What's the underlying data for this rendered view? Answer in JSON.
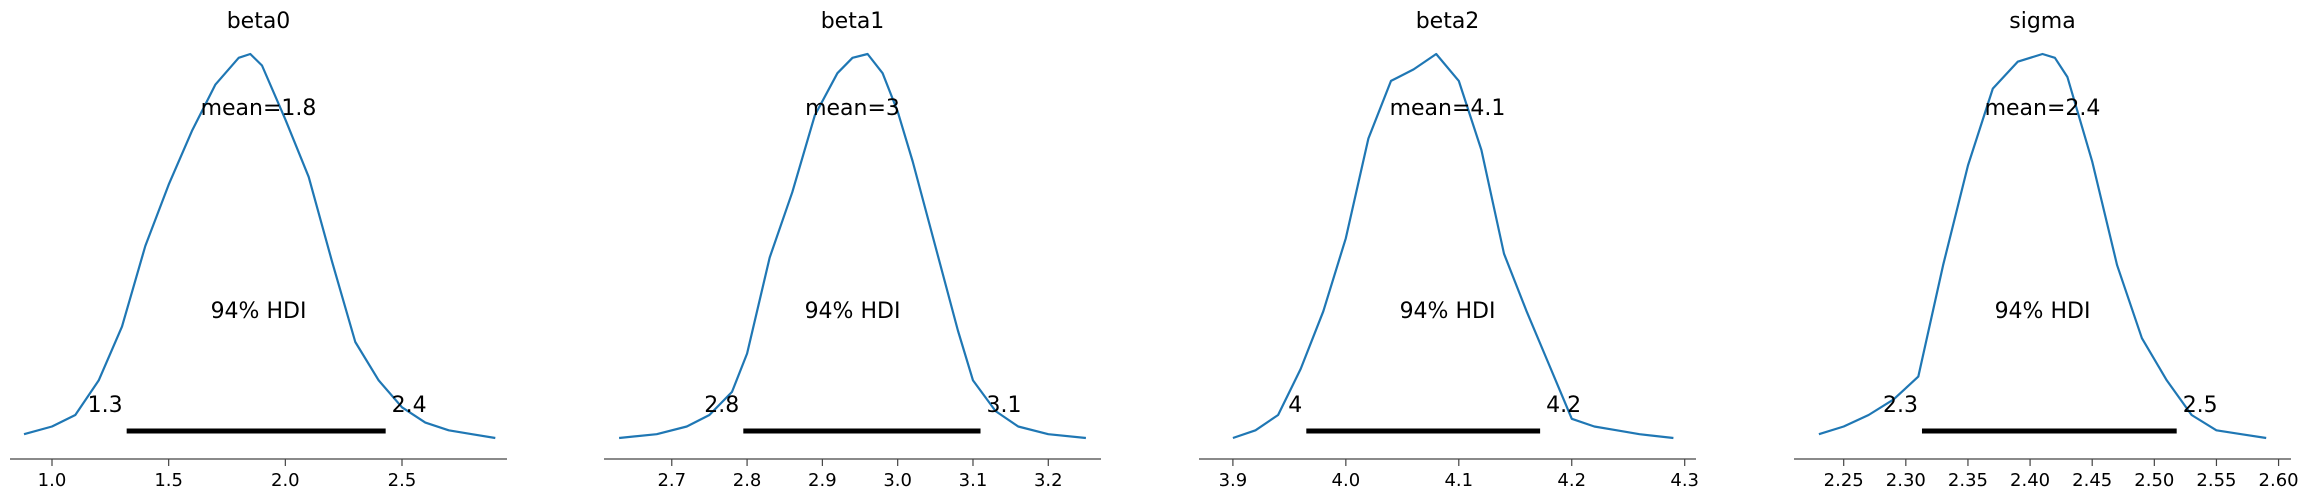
{
  "chart_data": [
    {
      "type": "density",
      "title": "beta0",
      "mean_label": "mean=1.8",
      "hdi_label": "94% HDI",
      "hdi": [
        1.32,
        2.43
      ],
      "hdi_low_label": "1.3",
      "hdi_high_label": "2.4",
      "xlim": [
        0.82,
        2.95
      ],
      "xticks": [
        1.0,
        1.5,
        2.0,
        2.5
      ],
      "xtick_labels": [
        "1.0",
        "1.5",
        "2.0",
        "2.5"
      ],
      "x": [
        0.88,
        1.0,
        1.1,
        1.2,
        1.3,
        1.4,
        1.5,
        1.6,
        1.7,
        1.8,
        1.85,
        1.9,
        2.0,
        2.1,
        2.2,
        2.3,
        2.4,
        2.5,
        2.6,
        2.7,
        2.8,
        2.9
      ],
      "y": [
        0.01,
        0.03,
        0.06,
        0.15,
        0.29,
        0.5,
        0.66,
        0.8,
        0.92,
        0.99,
        1.0,
        0.97,
        0.83,
        0.68,
        0.46,
        0.25,
        0.15,
        0.08,
        0.04,
        0.02,
        0.01,
        0.0
      ]
    },
    {
      "type": "density",
      "title": "beta1",
      "mean_label": "mean=3",
      "hdi_label": "94% HDI",
      "hdi": [
        2.795,
        3.11
      ],
      "hdi_low_label": "2.8",
      "hdi_high_label": "3.1",
      "xlim": [
        2.61,
        3.27
      ],
      "xticks": [
        2.7,
        2.8,
        2.9,
        3.0,
        3.1,
        3.2
      ],
      "xtick_labels": [
        "2.7",
        "2.8",
        "2.9",
        "3.0",
        "3.1",
        "3.2"
      ],
      "x": [
        2.63,
        2.68,
        2.72,
        2.75,
        2.78,
        2.8,
        2.83,
        2.86,
        2.89,
        2.92,
        2.94,
        2.96,
        2.98,
        3.0,
        3.02,
        3.05,
        3.08,
        3.1,
        3.13,
        3.16,
        3.2,
        3.25
      ],
      "y": [
        0.0,
        0.01,
        0.03,
        0.06,
        0.12,
        0.22,
        0.47,
        0.64,
        0.84,
        0.95,
        0.99,
        1.0,
        0.95,
        0.85,
        0.72,
        0.5,
        0.28,
        0.15,
        0.07,
        0.03,
        0.01,
        0.0
      ]
    },
    {
      "type": "density",
      "title": "beta2",
      "mean_label": "mean=4.1",
      "hdi_label": "94% HDI",
      "hdi": [
        3.965,
        4.172
      ],
      "hdi_low_label": "4",
      "hdi_high_label": "4.2",
      "xlim": [
        3.87,
        4.31
      ],
      "xticks": [
        3.9,
        4.0,
        4.1,
        4.2,
        4.3
      ],
      "xtick_labels": [
        "3.9",
        "4.0",
        "4.1",
        "4.2",
        "4.3"
      ],
      "x": [
        3.9,
        3.92,
        3.94,
        3.96,
        3.98,
        4.0,
        4.02,
        4.04,
        4.06,
        4.08,
        4.1,
        4.12,
        4.14,
        4.16,
        4.18,
        4.2,
        4.22,
        4.24,
        4.26,
        4.29
      ],
      "y": [
        0.0,
        0.02,
        0.06,
        0.18,
        0.33,
        0.52,
        0.78,
        0.93,
        0.96,
        1.0,
        0.93,
        0.75,
        0.48,
        0.33,
        0.19,
        0.05,
        0.03,
        0.02,
        0.01,
        0.0
      ]
    },
    {
      "type": "density",
      "title": "sigma",
      "mean_label": "mean=2.4",
      "hdi_label": "94% HDI",
      "hdi": [
        2.313,
        2.518
      ],
      "hdi_low_label": "2.3",
      "hdi_high_label": "2.5",
      "xlim": [
        2.21,
        2.61
      ],
      "xticks": [
        2.25,
        2.3,
        2.35,
        2.4,
        2.45,
        2.5,
        2.55,
        2.6
      ],
      "xtick_labels": [
        "2.25",
        "2.30",
        "2.35",
        "2.40",
        "2.45",
        "2.50",
        "2.55",
        "2.60"
      ],
      "x": [
        2.23,
        2.25,
        2.27,
        2.29,
        2.31,
        2.33,
        2.35,
        2.37,
        2.39,
        2.41,
        2.42,
        2.43,
        2.45,
        2.47,
        2.49,
        2.51,
        2.53,
        2.55,
        2.57,
        2.59
      ],
      "y": [
        0.01,
        0.03,
        0.06,
        0.1,
        0.16,
        0.45,
        0.71,
        0.91,
        0.98,
        1.0,
        0.99,
        0.94,
        0.72,
        0.45,
        0.26,
        0.15,
        0.06,
        0.02,
        0.01,
        0.0
      ]
    }
  ],
  "colors": {
    "curve": "#1f77b4",
    "hdi_bar": "#000000",
    "axis": "#444444"
  }
}
